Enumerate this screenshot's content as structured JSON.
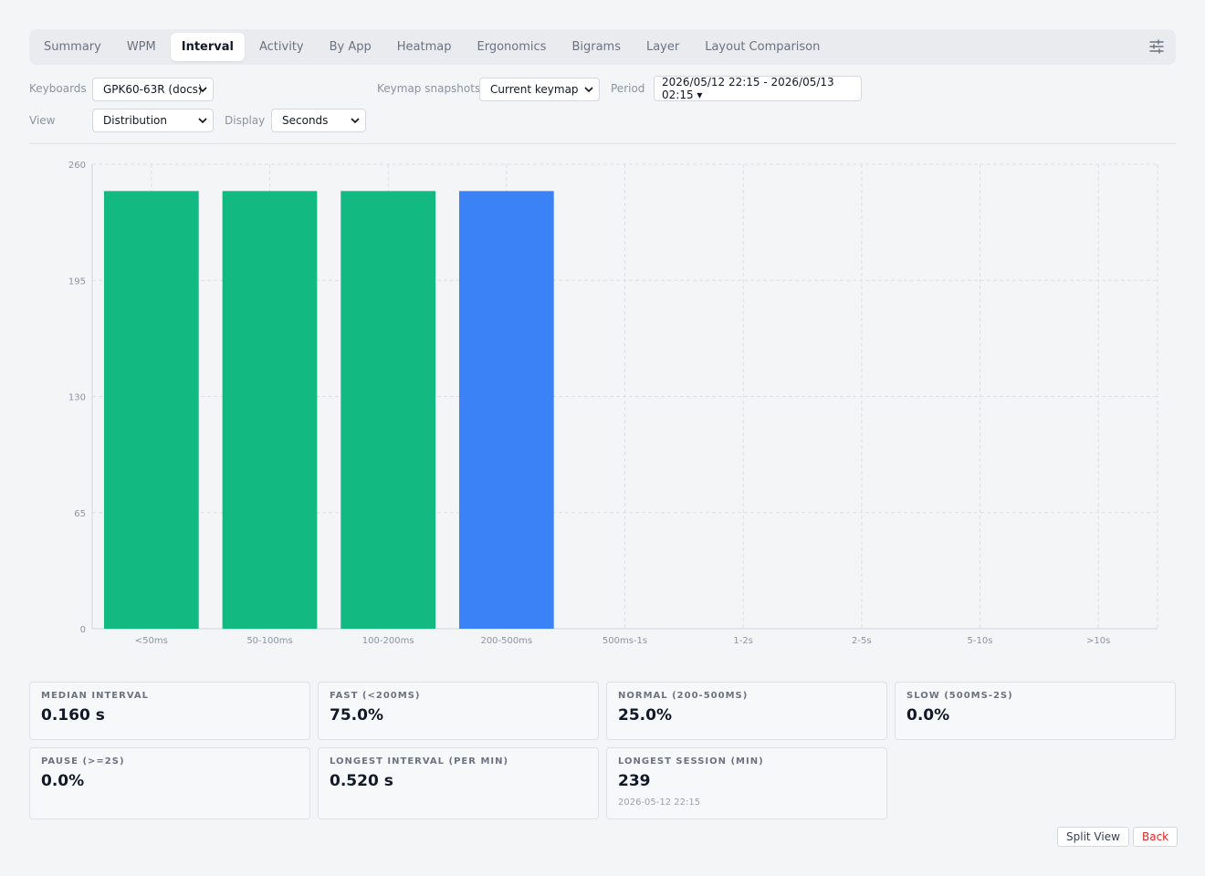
{
  "tabs": [
    "Summary",
    "WPM",
    "Interval",
    "Activity",
    "By App",
    "Heatmap",
    "Ergonomics",
    "Bigrams",
    "Layer",
    "Layout Comparison"
  ],
  "active_tab": "Interval",
  "filters": {
    "keyboards_label": "Keyboards",
    "keyboards_value": "GPK60-63R (docs)",
    "snapshots_label": "Keymap snapshots",
    "snapshots_value": "Current keymap",
    "period_label": "Period",
    "period_value": "2026/05/12 22:15 - 2026/05/13 02:15 ▾",
    "view_label": "View",
    "view_value": "Distribution",
    "display_label": "Display",
    "display_value": "Seconds"
  },
  "chart_data": {
    "type": "bar",
    "categories": [
      "<50ms",
      "50-100ms",
      "100-200ms",
      "200-500ms",
      "500ms-1s",
      "1-2s",
      "2-5s",
      "5-10s",
      ">10s"
    ],
    "values": [
      245,
      245,
      245,
      245,
      0,
      0,
      0,
      0,
      0
    ],
    "bar_colors": [
      "#12b981",
      "#12b981",
      "#12b981",
      "#3b82f6",
      "#3b82f6",
      "#3b82f6",
      "#3b82f6",
      "#3b82f6",
      "#3b82f6"
    ],
    "yticks": [
      0,
      65,
      130,
      195,
      260
    ],
    "ylim": [
      0,
      260
    ],
    "grid": true
  },
  "stats": [
    {
      "title": "MEDIAN INTERVAL",
      "value": "0.160 s"
    },
    {
      "title": "FAST (<200MS)",
      "value": "75.0%"
    },
    {
      "title": "NORMAL (200-500MS)",
      "value": "25.0%"
    },
    {
      "title": "SLOW (500MS-2S)",
      "value": "0.0%"
    },
    {
      "title": "PAUSE (>=2S)",
      "value": "0.0%"
    },
    {
      "title": "LONGEST INTERVAL (PER MIN)",
      "value": "0.520 s"
    },
    {
      "title": "LONGEST SESSION (MIN)",
      "value": "239",
      "sub": "2026-05-12 22:15"
    }
  ],
  "actions": {
    "split": "Split View",
    "back": "Back"
  },
  "colors": {
    "back_text": "#dc2626",
    "fast": "#12b981",
    "normal": "#3b82f6"
  }
}
